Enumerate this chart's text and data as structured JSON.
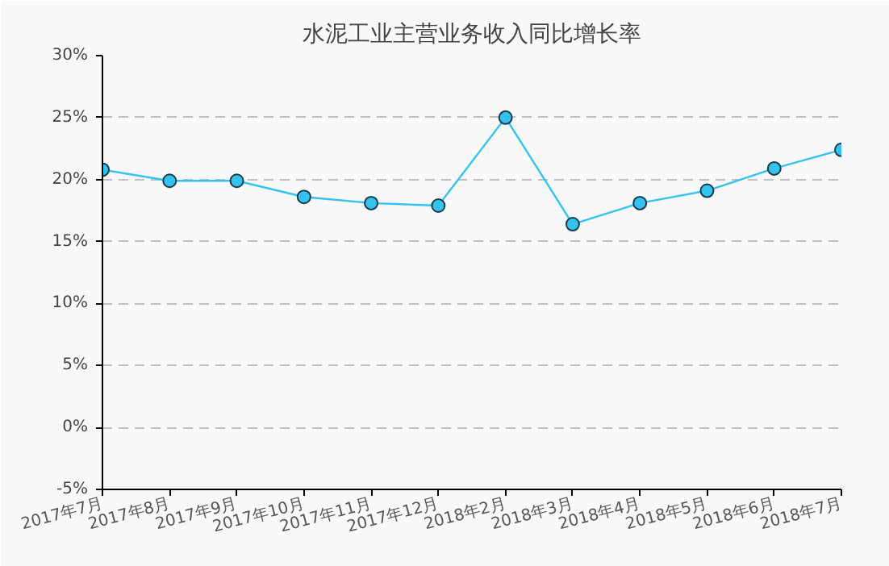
{
  "chart_data": {
    "type": "line",
    "title": "水泥工业主营业务收入同比增长率",
    "categories": [
      "2017年7月",
      "2017年8月",
      "2017年9月",
      "2017年10月",
      "2017年11月",
      "2017年12月",
      "2018年2月",
      "2018年3月",
      "2018年4月",
      "2018年5月",
      "2018年6月",
      "2018年7月"
    ],
    "series": [
      {
        "color": "#33c3ee",
        "values": [
          20.8,
          19.9,
          19.9,
          18.6,
          18.1,
          17.9,
          25.0,
          16.4,
          18.1,
          19.1,
          20.9,
          22.4
        ]
      }
    ],
    "ylim": [
      -5,
      30
    ],
    "yticks": [
      {
        "value": -5,
        "label": "-5%"
      },
      {
        "value": 0,
        "label": "0%"
      },
      {
        "value": 5,
        "label": "5%"
      },
      {
        "value": 10,
        "label": "10%"
      },
      {
        "value": 15,
        "label": "15%"
      },
      {
        "value": 20,
        "label": "20%"
      },
      {
        "value": 25,
        "label": "25%"
      },
      {
        "value": 30,
        "label": "30%"
      }
    ],
    "grid": "y",
    "marker": "circle",
    "line_style": "solid"
  }
}
